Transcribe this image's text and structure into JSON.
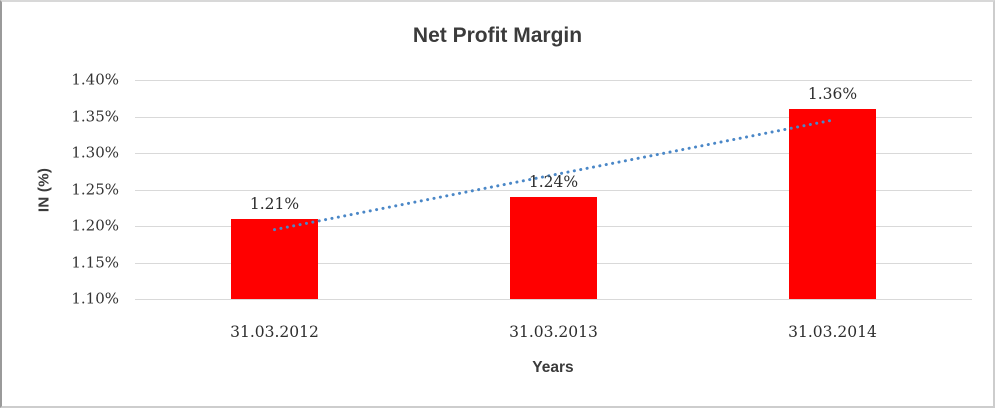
{
  "chart_data": {
    "type": "bar",
    "title": "Net Profit Margin",
    "xlabel": "Years",
    "ylabel": "IN (%)",
    "categories": [
      "31.03.2012",
      "31.03.2013",
      "31.03.2014"
    ],
    "values": [
      1.21,
      1.24,
      1.36
    ],
    "data_labels": [
      "1.21%",
      "1.24%",
      "1.36%"
    ],
    "ylim": [
      1.1,
      1.4
    ],
    "ytick_step": 0.05,
    "ytick_labels": [
      "1.10%",
      "1.15%",
      "1.20%",
      "1.25%",
      "1.30%",
      "1.35%",
      "1.40%"
    ],
    "grid": true,
    "legend": "none",
    "bar_color": "#ff0000",
    "gridline_color": "#d9d9d9",
    "text_color": "#3b3b3b",
    "trendline": {
      "type": "linear",
      "style": "dotted",
      "color": "#4a87c7"
    }
  }
}
